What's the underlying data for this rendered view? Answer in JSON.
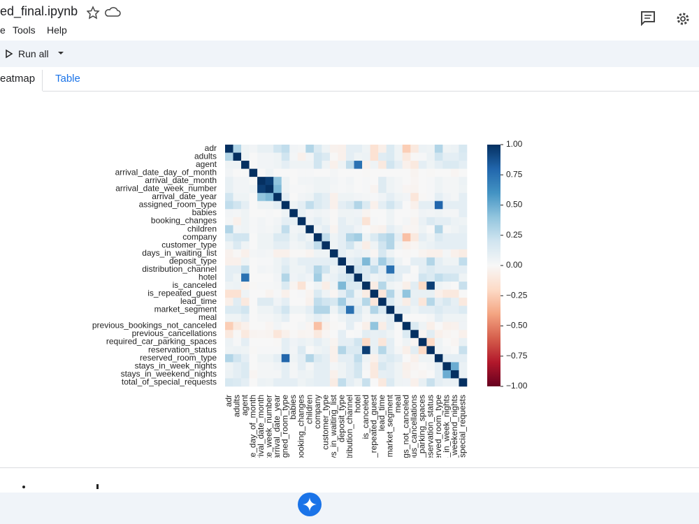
{
  "header": {
    "filename": "ed_final.ipynb",
    "menu": [
      "e",
      "Tools",
      "Help"
    ]
  },
  "toolbar": {
    "run_all": "Run all"
  },
  "tabs": [
    "eatmap",
    "Table"
  ],
  "chart_data": {
    "type": "heatmap",
    "labels": [
      "adr",
      "adults",
      "agent",
      "arrival_date_day_of_month",
      "arrival_date_month",
      "arrival_date_week_number",
      "arrival_date_year",
      "assigned_room_type",
      "babies",
      "booking_changes",
      "children",
      "company",
      "customer_type",
      "days_in_waiting_list",
      "deposit_type",
      "distribution_channel",
      "hotel",
      "is_canceled",
      "is_repeated_guest",
      "lead_time",
      "market_segment",
      "meal",
      "previous_bookings_not_canceled",
      "previous_cancellations",
      "required_car_parking_spaces",
      "reservation_status",
      "reserved_room_type",
      "stays_in_week_nights",
      "stays_in_weekend_nights",
      "total_of_special_requests"
    ],
    "values": [
      [
        1,
        0.3,
        0.05,
        0.03,
        0.08,
        0.08,
        0.2,
        0.25,
        0.03,
        0.02,
        0.3,
        0.15,
        0.05,
        -0.04,
        -0.05,
        0.1,
        0.1,
        0.05,
        -0.15,
        -0.06,
        0.15,
        0.05,
        -0.25,
        -0.1,
        0.06,
        0.05,
        0.3,
        0.05,
        0.06,
        0.17
      ],
      [
        0.3,
        1,
        0.05,
        0,
        0.03,
        0.03,
        0.05,
        0.2,
        0.02,
        -0.05,
        0.03,
        0.2,
        0.15,
        -0.01,
        -0.05,
        0.1,
        0.05,
        0.06,
        -0.15,
        0.12,
        0.15,
        0.05,
        -0.1,
        -0.01,
        0.01,
        0.06,
        0.2,
        0.1,
        0.1,
        0.15
      ],
      [
        0.05,
        0.05,
        1,
        0,
        0.03,
        0.03,
        0.05,
        0.1,
        0.05,
        0.05,
        0.05,
        0.2,
        0.05,
        -0.05,
        0.05,
        0.25,
        0.75,
        -0.05,
        0.05,
        -0.1,
        0.2,
        0.1,
        -0.05,
        -0.1,
        0.1,
        0.05,
        0.1,
        0.15,
        0.15,
        0.1
      ],
      [
        0.03,
        0,
        0,
        1,
        0,
        0.05,
        0,
        0,
        0,
        0.01,
        0.01,
        0,
        0,
        0.02,
        0,
        0,
        0,
        -0.01,
        0,
        0,
        0,
        0,
        0,
        -0.03,
        0,
        -0.01,
        0,
        0,
        -0.02,
        0
      ],
      [
        0.08,
        0.03,
        0.03,
        0,
        1,
        0.95,
        0.4,
        0.05,
        0,
        0.03,
        0.03,
        0.05,
        0.05,
        0.03,
        0.01,
        0.03,
        0,
        0.01,
        0,
        0.13,
        0.05,
        0.02,
        0,
        -0.02,
        0,
        0.01,
        0.05,
        0.02,
        0.02,
        0.06
      ],
      [
        0.08,
        0.03,
        0.03,
        0.05,
        0.95,
        1,
        0.45,
        0.05,
        0.01,
        0.01,
        0.02,
        0.05,
        0.05,
        0.02,
        0.01,
        0.02,
        0,
        0.01,
        -0.03,
        0.13,
        0.05,
        0.02,
        -0.02,
        -0.03,
        0,
        0.01,
        0.05,
        0.02,
        0.02,
        0.05
      ],
      [
        0.2,
        0.05,
        0.05,
        0,
        0.4,
        0.45,
        1,
        0.1,
        0,
        0.03,
        0.05,
        0.15,
        0.1,
        -0.05,
        0.05,
        0.05,
        0.03,
        0.02,
        0.01,
        0.04,
        0.1,
        0.05,
        0.03,
        -0.12,
        -0.01,
        0.01,
        0.1,
        0.04,
        0.02,
        0.1
      ],
      [
        0.25,
        0.2,
        0.1,
        0,
        0.05,
        0.05,
        0.1,
        1,
        0.05,
        0.1,
        0.25,
        0.15,
        0.1,
        -0.05,
        0.1,
        0.15,
        0.3,
        0.15,
        -0.05,
        0.1,
        0.2,
        0.1,
        0,
        -0.05,
        0.1,
        0.1,
        0.8,
        0.1,
        0.1,
        0.1
      ],
      [
        0.03,
        0.02,
        0.05,
        0,
        0,
        0.01,
        0,
        0.05,
        1,
        0.08,
        0.03,
        0.05,
        0.03,
        -0.01,
        0.05,
        0.05,
        0.04,
        -0.03,
        0,
        0,
        0.05,
        0,
        0,
        -0.01,
        0.04,
        0.03,
        0.05,
        0.02,
        0.02,
        0.1
      ],
      [
        0.02,
        -0.05,
        0.05,
        0.01,
        0.03,
        0.01,
        0.03,
        0.1,
        0.08,
        1,
        0.05,
        0.1,
        0.05,
        -0.01,
        0.1,
        0.05,
        0.07,
        -0.14,
        0.01,
        0,
        0.05,
        0,
        0.02,
        -0.03,
        0.07,
        0.14,
        0.1,
        0.1,
        0.06,
        0.05
      ],
      [
        0.3,
        0.03,
        0.05,
        0.01,
        0.03,
        0.02,
        0.05,
        0.25,
        0.03,
        0.05,
        1,
        0.05,
        0.1,
        -0.03,
        0.1,
        0.1,
        0.04,
        0,
        -0.03,
        -0.04,
        0.1,
        0.05,
        -0.02,
        -0.02,
        0.05,
        0,
        0.3,
        0.02,
        0.05,
        0.08
      ],
      [
        0.15,
        0.2,
        0.2,
        0,
        0.05,
        0.05,
        0.15,
        0.15,
        0.05,
        0.1,
        0.05,
        1,
        0.25,
        0.05,
        0.1,
        0.3,
        0.35,
        0.05,
        0.15,
        0.25,
        0.3,
        0.1,
        -0.3,
        -0.1,
        0.1,
        0.05,
        0.15,
        0.1,
        0.1,
        0.1
      ],
      [
        0.05,
        0.15,
        0.05,
        0,
        0.05,
        0.05,
        0.1,
        0.1,
        0.03,
        0.05,
        0.1,
        0.25,
        1,
        0.05,
        0.1,
        0.2,
        0.05,
        -0.07,
        0.05,
        0.2,
        0.3,
        0.05,
        -0.05,
        -0.02,
        0.05,
        0.07,
        0.1,
        0.1,
        0.1,
        0.1
      ],
      [
        -0.04,
        -0.01,
        -0.05,
        0.02,
        0.03,
        0.02,
        -0.05,
        -0.05,
        -0.01,
        -0.01,
        -0.03,
        0.05,
        0.05,
        1,
        0.1,
        0.05,
        0.07,
        0.05,
        -0.02,
        0.17,
        0.05,
        0,
        -0.01,
        0,
        -0.03,
        -0.05,
        -0.05,
        0.02,
        -0.05,
        -0.08
      ],
      [
        -0.05,
        -0.05,
        0.05,
        0,
        0.01,
        0.01,
        0.05,
        0.1,
        0.05,
        0.1,
        0.1,
        0.1,
        0.1,
        0.1,
        1,
        0.1,
        0.15,
        0.45,
        0.1,
        0.35,
        0.2,
        0.05,
        0,
        0.1,
        0.1,
        0.3,
        0.1,
        0.05,
        0.05,
        0.25
      ],
      [
        0.1,
        0.1,
        0.25,
        0,
        0.03,
        0.02,
        0.05,
        0.15,
        0.05,
        0.05,
        0.1,
        0.3,
        0.2,
        0.05,
        0.1,
        1,
        0.2,
        0.15,
        0.25,
        0.1,
        0.75,
        0.1,
        0.1,
        0,
        0.1,
        0.15,
        0.1,
        0.1,
        0.1,
        0.1
      ],
      [
        0.1,
        0.05,
        0.75,
        0,
        0,
        0,
        0.03,
        0.3,
        0.04,
        0.07,
        0.04,
        0.35,
        0.05,
        0.07,
        0.15,
        0.2,
        1,
        0.14,
        0.05,
        0.08,
        0.15,
        0.1,
        0,
        0.01,
        0.2,
        0.15,
        0.25,
        0.2,
        0.19,
        0.05
      ],
      [
        0.05,
        0.06,
        -0.05,
        -0.01,
        0.01,
        0.01,
        0.02,
        0.15,
        -0.03,
        -0.14,
        0,
        0.05,
        -0.07,
        0.05,
        0.45,
        0.15,
        0.14,
        1,
        -0.08,
        0.29,
        0.05,
        0.02,
        -0.06,
        0.11,
        -0.2,
        0.95,
        0.05,
        0.02,
        0,
        0.23
      ],
      [
        -0.15,
        -0.15,
        0.05,
        0,
        0,
        -0.03,
        0.01,
        -0.05,
        0,
        0.01,
        -0.03,
        0.15,
        0.05,
        -0.02,
        0.1,
        0.25,
        0.05,
        -0.08,
        1,
        -0.12,
        0.3,
        0.05,
        0.4,
        0.08,
        0.08,
        0.08,
        -0.05,
        -0.1,
        -0.1,
        0
      ],
      [
        -0.06,
        0.12,
        -0.1,
        0,
        0.13,
        0.13,
        0.04,
        0.1,
        0,
        0,
        -0.04,
        0.25,
        0.2,
        0.17,
        0.35,
        0.1,
        0.08,
        0.29,
        -0.12,
        1,
        0.15,
        0.05,
        -0.07,
        0.09,
        -0.12,
        0.29,
        0.1,
        0.17,
        0.09,
        -0.1
      ],
      [
        0.15,
        0.15,
        0.2,
        0,
        0.05,
        0.05,
        0.1,
        0.2,
        0.05,
        0.05,
        0.1,
        0.3,
        0.3,
        0.05,
        0.2,
        0.75,
        0.15,
        0.05,
        0.3,
        0.15,
        1,
        0.1,
        0.1,
        0.05,
        0.1,
        0.1,
        0.15,
        0.1,
        0.1,
        0.15
      ],
      [
        0.05,
        0.05,
        0.1,
        0,
        0.02,
        0.02,
        0.05,
        0.1,
        0,
        0,
        0.05,
        0.1,
        0.05,
        0,
        0.05,
        0.1,
        0.1,
        0.02,
        0.05,
        0.05,
        0.1,
        1,
        0,
        0,
        0,
        0.02,
        0.1,
        0.05,
        0.05,
        0.05
      ],
      [
        -0.25,
        -0.1,
        -0.05,
        0,
        0,
        -0.02,
        0.03,
        0,
        0,
        0.02,
        -0.02,
        -0.3,
        -0.05,
        -0.01,
        0,
        0.1,
        0,
        -0.06,
        0.4,
        -0.07,
        0.1,
        0,
        1,
        0.15,
        0.05,
        -0.06,
        0,
        -0.05,
        -0.04,
        0.04
      ],
      [
        -0.1,
        -0.01,
        -0.1,
        -0.03,
        -0.02,
        -0.03,
        -0.12,
        -0.05,
        -0.01,
        -0.03,
        -0.02,
        -0.1,
        -0.02,
        0,
        0.1,
        0,
        0.01,
        0.11,
        0.08,
        0.09,
        0.05,
        0,
        0.15,
        1,
        -0.02,
        0.11,
        -0.05,
        -0.02,
        -0.01,
        -0.05
      ],
      [
        0.06,
        0.01,
        0.1,
        0,
        0,
        0,
        -0.01,
        0.1,
        0.04,
        0.07,
        0.05,
        0.1,
        0.05,
        -0.03,
        0.1,
        0.1,
        0.2,
        -0.2,
        0.08,
        -0.12,
        0.1,
        0,
        0.05,
        -0.02,
        1,
        -0.2,
        0.05,
        0,
        -0.02,
        0.08
      ],
      [
        0.05,
        0.06,
        0.05,
        -0.01,
        0.01,
        0.01,
        0.01,
        0.1,
        0.03,
        0.14,
        0,
        0.05,
        0.07,
        -0.05,
        0.3,
        0.15,
        0.15,
        0.95,
        0.08,
        0.29,
        0.1,
        0.02,
        -0.06,
        0.11,
        -0.2,
        1,
        0.05,
        0.02,
        0,
        0.23
      ],
      [
        0.3,
        0.2,
        0.1,
        0,
        0.05,
        0.05,
        0.1,
        0.8,
        0.05,
        0.1,
        0.3,
        0.15,
        0.1,
        -0.05,
        0.1,
        0.1,
        0.25,
        0.05,
        -0.05,
        0.1,
        0.15,
        0.1,
        0,
        -0.05,
        0.05,
        0.05,
        1,
        0.1,
        0.1,
        0.1
      ],
      [
        0.05,
        0.1,
        0.15,
        0,
        0.02,
        0.02,
        0.04,
        0.1,
        0.02,
        0.1,
        0.02,
        0.1,
        0.1,
        0.02,
        0.05,
        0.1,
        0.2,
        0.02,
        -0.1,
        0.17,
        0.1,
        0.05,
        -0.05,
        -0.02,
        0,
        0.02,
        0.1,
        1,
        0.5,
        0.07
      ],
      [
        0.06,
        0.1,
        0.15,
        -0.02,
        0.02,
        0.02,
        0.02,
        0.1,
        0.02,
        0.06,
        0.05,
        0.1,
        0.1,
        -0.05,
        0.05,
        0.1,
        0.19,
        0,
        -0.1,
        0.09,
        0.1,
        0.05,
        -0.04,
        -0.01,
        -0.02,
        0,
        0.1,
        0.5,
        1,
        0.07
      ],
      [
        0.17,
        0.15,
        0.1,
        0,
        0.06,
        0.05,
        0.1,
        0.1,
        0.1,
        0.05,
        0.08,
        0.1,
        0.1,
        -0.08,
        0.25,
        0.1,
        0.05,
        0.23,
        0,
        -0.1,
        0.15,
        0.05,
        0.04,
        -0.05,
        0.08,
        0.23,
        0.1,
        0.07,
        0.07,
        1
      ]
    ],
    "zlim": [
      -1,
      1
    ],
    "zticks": [
      {
        "value": 1,
        "label": "1.00"
      },
      {
        "value": 0.75,
        "label": "0.75"
      },
      {
        "value": 0.5,
        "label": "0.50"
      },
      {
        "value": 0.25,
        "label": "0.25"
      },
      {
        "value": 0,
        "label": "0.00"
      },
      {
        "value": -0.25,
        "label": "−0.25"
      },
      {
        "value": -0.5,
        "label": "−0.50"
      },
      {
        "value": -0.75,
        "label": "−0.75"
      },
      {
        "value": -1,
        "label": "−1.00"
      }
    ],
    "colorscale": [
      [
        -1,
        "#67001f"
      ],
      [
        -0.8,
        "#b2182b"
      ],
      [
        -0.6,
        "#d6604d"
      ],
      [
        -0.4,
        "#f4a582"
      ],
      [
        -0.2,
        "#fddbc7"
      ],
      [
        0,
        "#f7f7f7"
      ],
      [
        0.2,
        "#d1e5f0"
      ],
      [
        0.4,
        "#92c5de"
      ],
      [
        0.6,
        "#4393c3"
      ],
      [
        0.8,
        "#2166ac"
      ],
      [
        1,
        "#053061"
      ]
    ]
  }
}
